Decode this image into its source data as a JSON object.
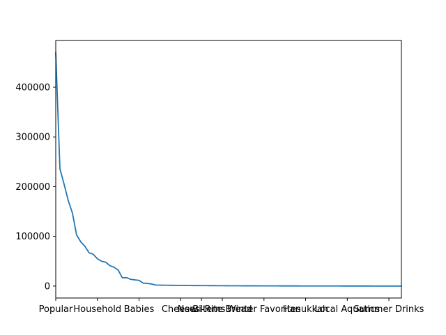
{
  "chart_data": {
    "type": "line",
    "title": "",
    "xlabel": "",
    "ylabel": "",
    "grid": false,
    "line_color": "#1f77b4",
    "xlim": [
      0,
      83
    ],
    "ylim": [
      -24000,
      494000
    ],
    "xticks": [
      {
        "pos": 0,
        "label": "Popular"
      },
      {
        "pos": 10,
        "label": "Household"
      },
      {
        "pos": 20,
        "label": "Babies"
      },
      {
        "pos": 30,
        "label": "Cheeses"
      },
      {
        "pos": 35,
        "label": "New Items"
      },
      {
        "pos": 40,
        "label": "Bi-Rite Bread"
      },
      {
        "pos": 50,
        "label": "Winter Favorites"
      },
      {
        "pos": 60,
        "label": "Hanukkah"
      },
      {
        "pos": 70,
        "label": "Local Aquatics"
      },
      {
        "pos": 80,
        "label": "Summer Drinks"
      }
    ],
    "yticks": [
      {
        "value": 0,
        "label": "0"
      },
      {
        "value": 100000,
        "label": "100000"
      },
      {
        "value": 200000,
        "label": "200000"
      },
      {
        "value": 300000,
        "label": "300000"
      },
      {
        "value": 400000,
        "label": "400000"
      }
    ],
    "x": [
      0,
      1,
      2,
      3,
      4,
      5,
      6,
      7,
      8,
      9,
      10,
      11,
      12,
      13,
      14,
      15,
      16,
      17,
      18,
      19,
      20,
      21,
      22,
      23,
      24,
      25,
      26,
      27,
      28,
      29,
      30,
      31,
      32,
      33,
      34,
      35,
      36,
      37,
      38,
      39,
      40,
      41,
      42,
      43,
      44,
      45,
      46,
      47,
      48,
      49,
      50,
      51,
      52,
      53,
      54,
      55,
      56,
      57,
      58,
      59,
      60,
      61,
      62,
      63,
      64,
      65,
      66,
      67,
      68,
      69,
      70,
      71,
      72,
      73,
      74,
      75,
      76,
      77,
      78,
      79,
      80,
      81,
      82,
      83
    ],
    "values": [
      470000,
      236000,
      205000,
      172000,
      147000,
      103000,
      89000,
      80000,
      67000,
      64000,
      55000,
      50000,
      48000,
      41000,
      38000,
      32000,
      16500,
      17000,
      13500,
      12500,
      11500,
      6000,
      5500,
      4000,
      2200,
      2000,
      1800,
      1600,
      1500,
      1400,
      1300,
      1200,
      1100,
      1000,
      1000,
      900,
      900,
      800,
      800,
      700,
      700,
      650,
      600,
      600,
      550,
      500,
      500,
      450,
      450,
      400,
      400,
      380,
      360,
      340,
      320,
      300,
      290,
      280,
      270,
      260,
      250,
      240,
      230,
      220,
      210,
      200,
      190,
      180,
      170,
      160,
      150,
      140,
      130,
      120,
      110,
      100,
      95,
      90,
      85,
      80,
      75,
      70,
      65,
      60
    ]
  }
}
